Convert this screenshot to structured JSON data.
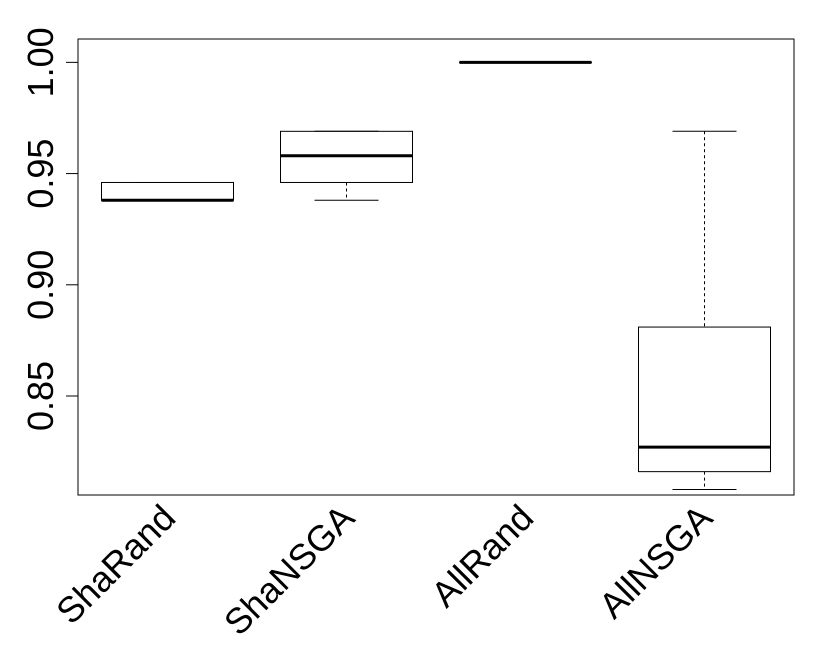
{
  "chart_data": {
    "type": "boxplot",
    "title": "",
    "xlabel": "",
    "ylabel": "",
    "ylim": [
      0.8055,
      1.0105
    ],
    "yticks": [
      0.85,
      0.9,
      0.95,
      1.0
    ],
    "ytick_labels": [
      "0.85",
      "0.90",
      "0.95",
      "1.00"
    ],
    "grid": false,
    "categories": [
      "ShaRand",
      "ShaNSGA",
      "AllRand",
      "AllNSGA"
    ],
    "boxes": [
      {
        "category": "ShaRand",
        "whisker_low": 0.938,
        "q1": 0.938,
        "median": 0.938,
        "q3": 0.946,
        "whisker_high": 0.946
      },
      {
        "category": "ShaNSGA",
        "whisker_low": 0.938,
        "q1": 0.946,
        "median": 0.958,
        "q3": 0.969,
        "whisker_high": 0.969
      },
      {
        "category": "AllRand",
        "whisker_low": 1.0,
        "q1": 1.0,
        "median": 1.0,
        "q3": 1.0,
        "whisker_high": 1.0
      },
      {
        "category": "AllNSGA",
        "whisker_low": 0.808,
        "q1": 0.816,
        "median": 0.827,
        "q3": 0.881,
        "whisker_high": 0.969
      }
    ]
  }
}
